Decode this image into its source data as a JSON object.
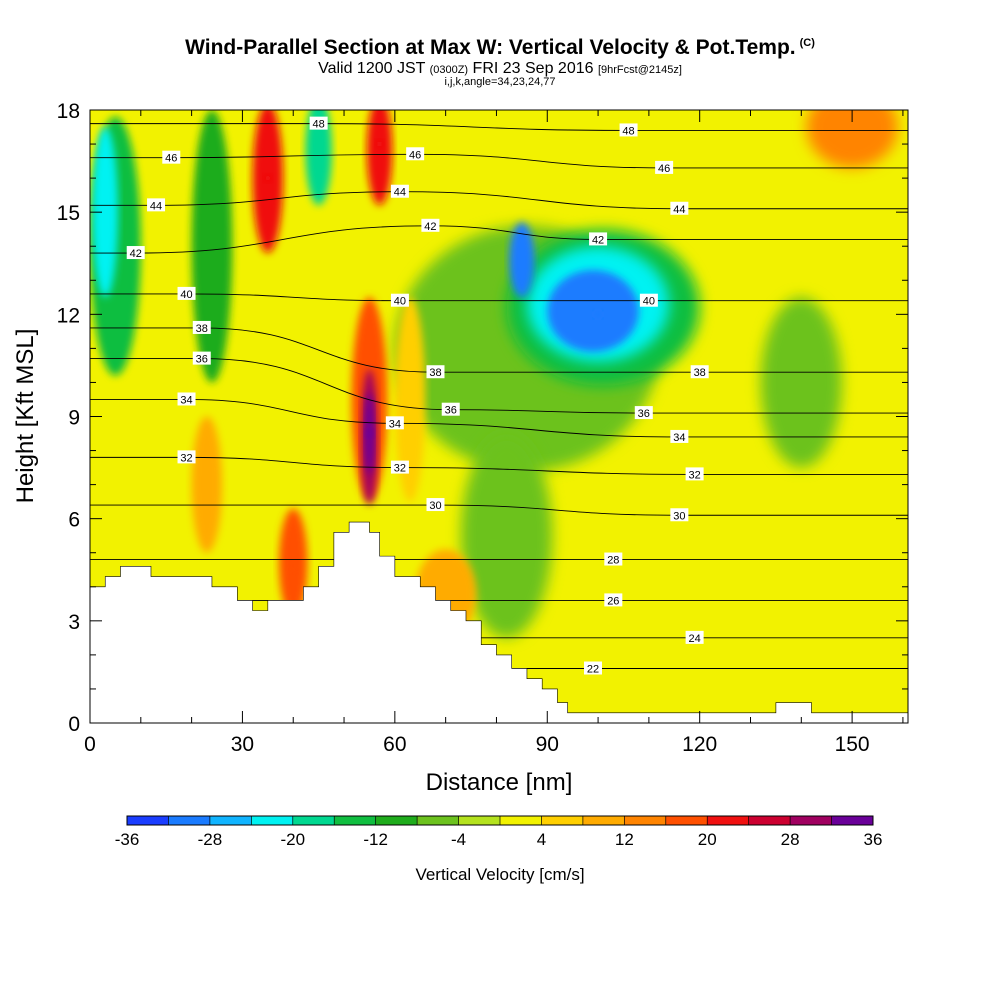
{
  "header": {
    "title": "Wind-Parallel Section at Max W: Vertical Velocity & Pot.Temp.",
    "copyright": "(C)",
    "valid_prefix": "Valid 1200 JST",
    "valid_utc": "(0300Z)",
    "valid_date": "FRI 23 Sep 2016",
    "forecast": "[9hrFcst@2145z]",
    "indices": "i,j,k,angle=34,23,24,77"
  },
  "chart_data": {
    "type": "heatmap",
    "title": "Wind-Parallel Section at Max W: Vertical Velocity & Pot.Temp.",
    "xlabel": "Distance [nm]",
    "ylabel": "Height [Kft MSL]",
    "xlim": [
      0,
      161
    ],
    "ylim": [
      0,
      18
    ],
    "x_ticks": [
      0,
      30,
      60,
      90,
      120,
      150
    ],
    "y_ticks": [
      0,
      3,
      6,
      9,
      12,
      15,
      18
    ],
    "colorbar": {
      "title": "Vertical Velocity [cm/s]",
      "labels": [
        "-36",
        "-28",
        "-20",
        "-12",
        "-4",
        "4",
        "12",
        "20",
        "28",
        "36"
      ],
      "levels": [
        -36,
        -32,
        -28,
        -24,
        -20,
        -16,
        -12,
        -8,
        -4,
        0,
        4,
        8,
        12,
        16,
        20,
        24,
        28,
        32,
        36
      ],
      "colors": [
        "#1a3dff",
        "#1a7bff",
        "#10b4ff",
        "#00f2f2",
        "#00d890",
        "#10be40",
        "#1fac1c",
        "#6cc21e",
        "#b4e21e",
        "#f2f200",
        "#ffcf00",
        "#ffab00",
        "#ff8400",
        "#ff5000",
        "#f01010",
        "#cc0030",
        "#a00060",
        "#6a0099"
      ]
    },
    "vertical_velocity_features": [
      {
        "kind": "downdraft",
        "x": 100,
        "y": 12,
        "value": -30
      },
      {
        "kind": "downdraft",
        "x": 3,
        "y": 15,
        "value": -22
      },
      {
        "kind": "downdraft",
        "x": 45,
        "y": 17,
        "value": -20
      },
      {
        "kind": "updraft",
        "x": 55,
        "y": 8.5,
        "value": 34
      },
      {
        "kind": "updraft",
        "x": 57,
        "y": 17,
        "value": 22
      },
      {
        "kind": "updraft",
        "x": 35,
        "y": 16,
        "value": 22
      },
      {
        "kind": "updraft",
        "x": 40,
        "y": 4.5,
        "value": 16
      },
      {
        "kind": "updraft",
        "x": 150,
        "y": 17.5,
        "value": 12
      }
    ],
    "pot_temp_contour_labels": [
      {
        "text": "48",
        "x": 45,
        "y": 17.6
      },
      {
        "text": "48",
        "x": 106,
        "y": 17.4
      },
      {
        "text": "46",
        "x": 16,
        "y": 16.6
      },
      {
        "text": "46",
        "x": 64,
        "y": 16.7
      },
      {
        "text": "46",
        "x": 113,
        "y": 16.3
      },
      {
        "text": "44",
        "x": 13,
        "y": 15.2
      },
      {
        "text": "44",
        "x": 61,
        "y": 15.6
      },
      {
        "text": "44",
        "x": 116,
        "y": 15.1
      },
      {
        "text": "42",
        "x": 9,
        "y": 13.8
      },
      {
        "text": "42",
        "x": 67,
        "y": 14.6
      },
      {
        "text": "42",
        "x": 100,
        "y": 14.2
      },
      {
        "text": "40",
        "x": 19,
        "y": 12.6
      },
      {
        "text": "40",
        "x": 61,
        "y": 12.4
      },
      {
        "text": "40",
        "x": 110,
        "y": 12.4
      },
      {
        "text": "38",
        "x": 22,
        "y": 11.6
      },
      {
        "text": "38",
        "x": 68,
        "y": 10.3
      },
      {
        "text": "38",
        "x": 120,
        "y": 10.3
      },
      {
        "text": "36",
        "x": 22,
        "y": 10.7
      },
      {
        "text": "36",
        "x": 71,
        "y": 9.2
      },
      {
        "text": "36",
        "x": 109,
        "y": 9.1
      },
      {
        "text": "34",
        "x": 19,
        "y": 9.5
      },
      {
        "text": "34",
        "x": 60,
        "y": 8.8
      },
      {
        "text": "34",
        "x": 116,
        "y": 8.4
      },
      {
        "text": "32",
        "x": 19,
        "y": 7.8
      },
      {
        "text": "32",
        "x": 61,
        "y": 7.5
      },
      {
        "text": "32",
        "x": 119,
        "y": 7.3
      },
      {
        "text": "30",
        "x": 68,
        "y": 6.4
      },
      {
        "text": "30",
        "x": 116,
        "y": 6.1
      },
      {
        "text": "28",
        "x": 103,
        "y": 4.8
      },
      {
        "text": "26",
        "x": 103,
        "y": 3.6
      },
      {
        "text": "24",
        "x": 119,
        "y": 2.5
      },
      {
        "text": "22",
        "x": 99,
        "y": 1.6
      }
    ],
    "terrain": [
      [
        0,
        4.0
      ],
      [
        3,
        4.0
      ],
      [
        3,
        4.3
      ],
      [
        6,
        4.3
      ],
      [
        6,
        4.6
      ],
      [
        12,
        4.6
      ],
      [
        12,
        4.3
      ],
      [
        24,
        4.3
      ],
      [
        24,
        4.0
      ],
      [
        29,
        4.0
      ],
      [
        29,
        3.6
      ],
      [
        32,
        3.6
      ],
      [
        32,
        3.3
      ],
      [
        35,
        3.3
      ],
      [
        35,
        3.6
      ],
      [
        42,
        3.6
      ],
      [
        42,
        4.0
      ],
      [
        45,
        4.0
      ],
      [
        45,
        4.6
      ],
      [
        48,
        4.6
      ],
      [
        48,
        5.6
      ],
      [
        51,
        5.6
      ],
      [
        51,
        5.9
      ],
      [
        55,
        5.9
      ],
      [
        55,
        5.6
      ],
      [
        57,
        5.6
      ],
      [
        57,
        4.9
      ],
      [
        60,
        4.9
      ],
      [
        60,
        4.3
      ],
      [
        65,
        4.3
      ],
      [
        65,
        4.0
      ],
      [
        68,
        4.0
      ],
      [
        68,
        3.6
      ],
      [
        71,
        3.6
      ],
      [
        71,
        3.3
      ],
      [
        74,
        3.3
      ],
      [
        74,
        3.0
      ],
      [
        77,
        3.0
      ],
      [
        77,
        2.3
      ],
      [
        80,
        2.3
      ],
      [
        80,
        2.0
      ],
      [
        83,
        2.0
      ],
      [
        83,
        1.6
      ],
      [
        86,
        1.6
      ],
      [
        86,
        1.3
      ],
      [
        89,
        1.3
      ],
      [
        89,
        1.0
      ],
      [
        92,
        1.0
      ],
      [
        92,
        0.6
      ],
      [
        94,
        0.6
      ],
      [
        94,
        0.3
      ],
      [
        135,
        0.3
      ],
      [
        135,
        0.6
      ],
      [
        142,
        0.6
      ],
      [
        142,
        0.3
      ],
      [
        161,
        0.3
      ],
      [
        161,
        0
      ]
    ]
  }
}
